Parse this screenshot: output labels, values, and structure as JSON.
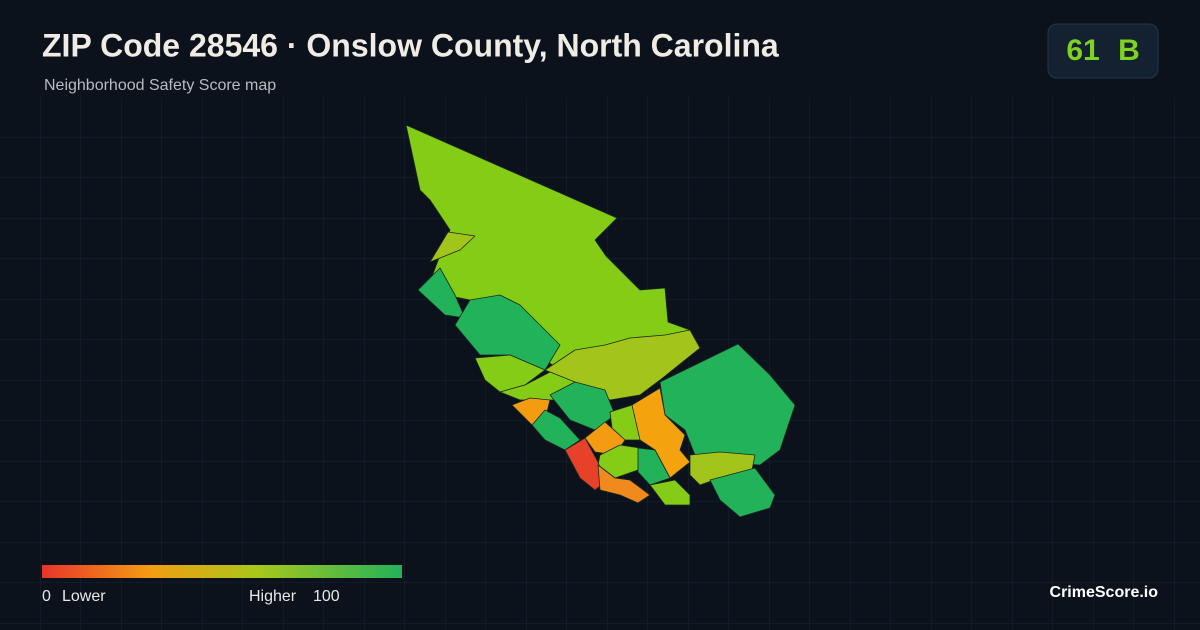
{
  "header": {
    "title": "ZIP Code 28546 · Onslow County, North Carolina",
    "subtitle": "Neighborhood Safety Score map"
  },
  "score": {
    "value": 61,
    "grade": "B"
  },
  "legend": {
    "min": 0,
    "min_label": "Lower",
    "max_label": "Higher",
    "max": 100
  },
  "brand": "CrimeScore.io"
}
